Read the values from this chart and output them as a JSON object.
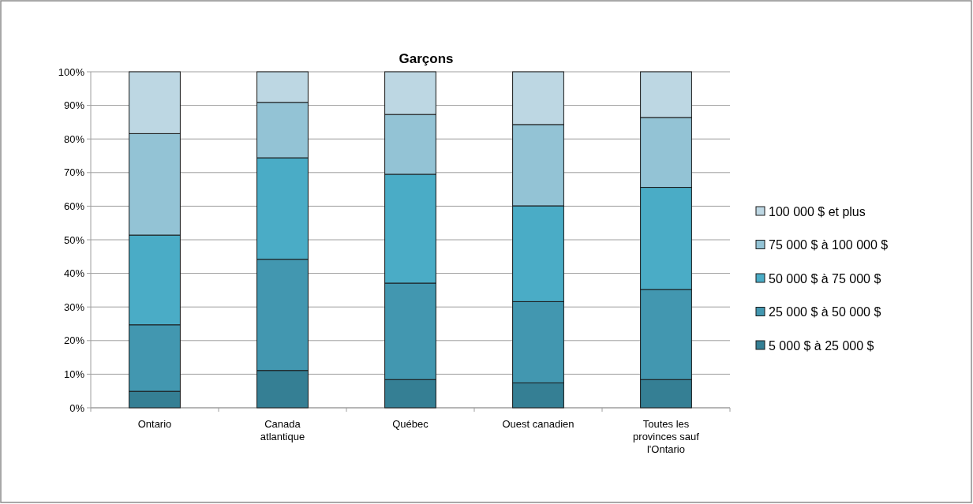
{
  "chart_data": {
    "type": "bar",
    "title": "Garçons",
    "stacked": true,
    "grid": "y",
    "legend": "right",
    "categories": [
      "Ontario",
      "Canada atlantique",
      "Québec",
      "Ouest canadien",
      "Toutes les provinces sauf l'Ontario"
    ],
    "series": [
      {
        "name": "5 000 $ à 25 000 $",
        "color": "#357f94",
        "values": [
          4.9,
          11.1,
          8.4,
          7.4,
          8.4
        ]
      },
      {
        "name": "25 000 $ à 50 000 $",
        "color": "#4297b0",
        "values": [
          19.8,
          33.1,
          28.7,
          24.2,
          26.8
        ]
      },
      {
        "name": "50 000 $ à 75 000 $",
        "color": "#4aacc6",
        "values": [
          26.7,
          30.2,
          32.4,
          28.5,
          30.4
        ]
      },
      {
        "name": "75 000 $ à 100 000 $",
        "color": "#93c3d5",
        "values": [
          30.2,
          16.5,
          17.8,
          24.2,
          20.8
        ]
      },
      {
        "name": "100 000 $ et plus",
        "color": "#bdd7e3",
        "values": [
          18.4,
          9.1,
          12.7,
          15.7,
          13.6
        ]
      }
    ],
    "ylim": [
      0,
      100
    ],
    "yticks": [
      {
        "value": 0,
        "label": "0%"
      },
      {
        "value": 10,
        "label": "10%"
      },
      {
        "value": 20,
        "label": "20%"
      },
      {
        "value": 30,
        "label": "30%"
      },
      {
        "value": 40,
        "label": "40%"
      },
      {
        "value": 50,
        "label": "50%"
      },
      {
        "value": 60,
        "label": "60%"
      },
      {
        "value": 70,
        "label": "70%"
      },
      {
        "value": 80,
        "label": "80%"
      },
      {
        "value": 90,
        "label": "90%"
      },
      {
        "value": 100,
        "label": "100%"
      }
    ]
  }
}
